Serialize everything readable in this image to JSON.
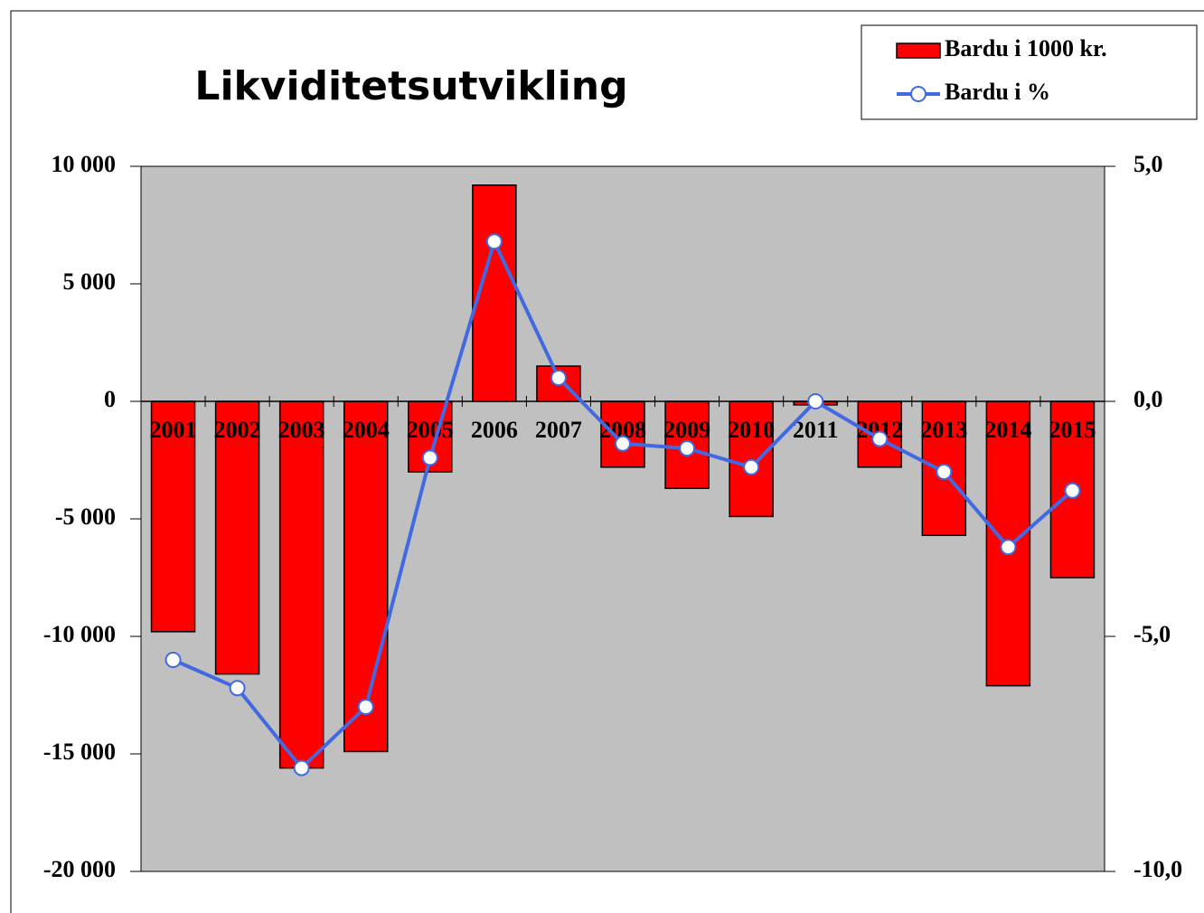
{
  "chart_data": {
    "type": "bar",
    "title": "Likviditetsutvikling",
    "categories": [
      "2001",
      "2002",
      "2003",
      "2004",
      "2005",
      "2006",
      "2007",
      "2008",
      "2009",
      "2010",
      "2011",
      "2012",
      "2013",
      "2014",
      "2015"
    ],
    "series": [
      {
        "name": "Bardu i 1000 kr.",
        "type": "bar",
        "color": "#ff0000",
        "values": [
          -9800,
          -11600,
          -15600,
          -14900,
          -3000,
          9200,
          1500,
          -2800,
          -3700,
          -4900,
          -150,
          -2800,
          -5700,
          -12100,
          -7500
        ]
      },
      {
        "name": "Bardu i %",
        "type": "line",
        "axis": "y2",
        "color": "#4169e1",
        "values": [
          -5.5,
          -6.1,
          -7.8,
          -6.5,
          -1.2,
          3.4,
          0.5,
          -0.9,
          -1.0,
          -1.4,
          0,
          -0.8,
          -1.5,
          -3.1,
          -1.9
        ]
      }
    ],
    "ylim": [
      -20000,
      10000
    ],
    "yticks": [
      {
        "value": -20000,
        "label": "-20 000"
      },
      {
        "value": -15000,
        "label": "-15 000"
      },
      {
        "value": -10000,
        "label": "-10 000"
      },
      {
        "value": -5000,
        "label": "-5 000"
      },
      0,
      {
        "value": 5000,
        "label": "5 000"
      },
      {
        "value": 10000,
        "label": "10 000"
      }
    ],
    "y2lim": [
      -10,
      5
    ],
    "y2ticks": [
      {
        "value": -10,
        "label": "-10,0"
      },
      {
        "value": -5,
        "label": "-5,0"
      },
      {
        "value": 0,
        "label": "0,0"
      },
      {
        "value": 5,
        "label": "5,0"
      }
    ],
    "plot_background": "#c0c0c0",
    "legend": "top-right"
  }
}
